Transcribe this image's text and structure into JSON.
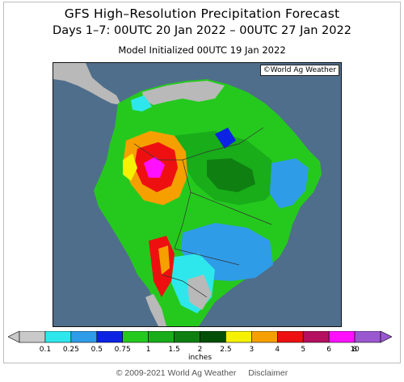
{
  "title": "GFS High–Resolution Precipitation Forecast",
  "subtitle": "Days 1–7: 00UTC 20 Jan 2022 – 00UTC 27 Jan 2022",
  "init_line": "Model Initialized 00UTC 19 Jan 2022",
  "watermark": "©World Ag Weather",
  "legend": {
    "unit": "inches",
    "labels": [
      "0.1",
      "0.25",
      "0.5",
      "0.75",
      "1",
      "1.5",
      "2",
      "2.5",
      "3",
      "4",
      "5",
      "6",
      "8",
      "10"
    ],
    "colors": [
      "#c9c9c9",
      "#2ee7ec",
      "#2f9ce8",
      "#0c23e3",
      "#25c91e",
      "#18ad19",
      "#0f7f12",
      "#034f07",
      "#f5f100",
      "#f5a000",
      "#ee1010",
      "#b5105f",
      "#ff10ff",
      "#9a58d0"
    ]
  },
  "footer": {
    "copyright": "© 2009-2021 World Ag Weather",
    "disclaimer": "Disclaimer"
  }
}
